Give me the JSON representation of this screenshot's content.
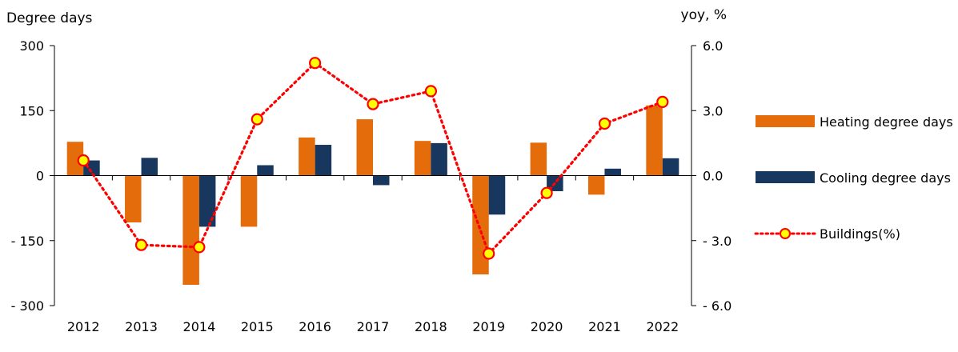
{
  "chart_data": {
    "type": "bar",
    "ylabel_left": "Degree days",
    "ylabel_right": "yoy, %",
    "categories": [
      "2012",
      "2013",
      "2014",
      "2015",
      "2016",
      "2017",
      "2018",
      "2019",
      "2020",
      "2021",
      "2022"
    ],
    "ylim_left": [
      -300,
      300
    ],
    "yticks_left": [
      "300",
      "150",
      "0",
      "- 150",
      "- 300"
    ],
    "ylim_right": [
      -6.0,
      6.0
    ],
    "yticks_right": [
      "6.0",
      "3.0",
      "0.0",
      "- 3.0",
      "- 6.0"
    ],
    "series": [
      {
        "name": "Heating degree days",
        "type": "bar",
        "axis": "left",
        "color": "#E46C0A",
        "values": [
          78,
          -108,
          -252,
          -118,
          88,
          130,
          80,
          -228,
          76,
          -44,
          162
        ]
      },
      {
        "name": "Cooling degree days",
        "type": "bar",
        "axis": "left",
        "color": "#17375E",
        "values": [
          35,
          41,
          -118,
          24,
          71,
          -22,
          75,
          -90,
          -36,
          16,
          40
        ]
      },
      {
        "name": "Buildings(%)",
        "type": "line",
        "axis": "right",
        "color": "#FF0000",
        "marker_fill": "#FFFF00",
        "marker_edge": "#FF0000",
        "line_style": "dotted",
        "values": [
          0.7,
          -3.2,
          -3.3,
          2.6,
          5.2,
          3.3,
          3.9,
          -3.6,
          -0.8,
          2.4,
          3.4
        ]
      }
    ],
    "legend_position": "right",
    "grid": false
  }
}
